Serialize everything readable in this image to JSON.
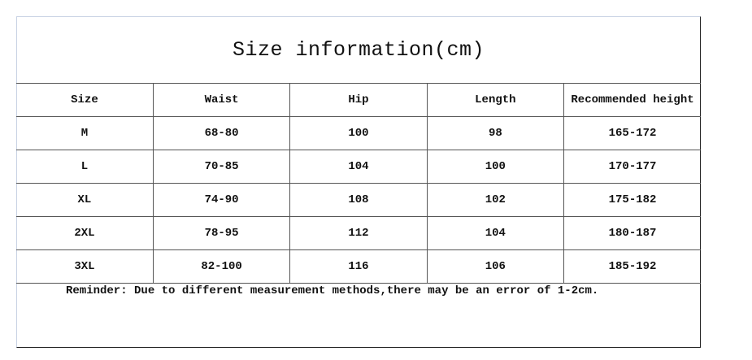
{
  "title": "Size information(cm)",
  "columns": [
    "Size",
    "Waist",
    "Hip",
    "Length",
    "Recommended height"
  ],
  "rows": [
    [
      "M",
      "68-80",
      "100",
      "98",
      "165-172"
    ],
    [
      "L",
      "70-85",
      "104",
      "100",
      "170-177"
    ],
    [
      "XL",
      "74-90",
      "108",
      "102",
      "175-182"
    ],
    [
      "2XL",
      "78-95",
      "112",
      "104",
      "180-187"
    ],
    [
      "3XL",
      "82-100",
      "116",
      "106",
      "185-192"
    ]
  ],
  "reminder": "Reminder: Due to different measurement methods,there may be an error of 1-2cm."
}
